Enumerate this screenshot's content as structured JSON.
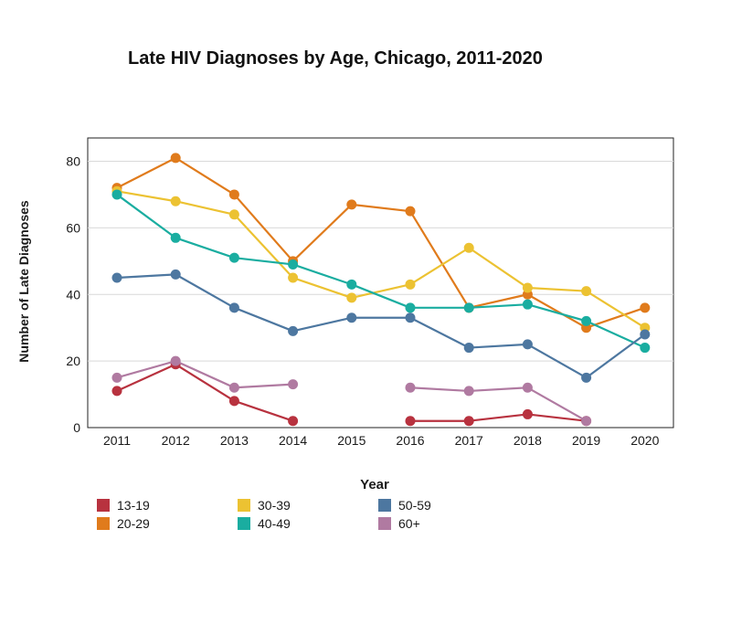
{
  "chart_data": {
    "type": "line",
    "title": "Late HIV Diagnoses by Age, Chicago, 2011-2020",
    "xlabel": "Year",
    "ylabel": "Number of Late Diagnoses",
    "x": [
      "2011",
      "2012",
      "2013",
      "2014",
      "2015",
      "2016",
      "2017",
      "2018",
      "2019",
      "2020"
    ],
    "yticks": [
      0,
      20,
      40,
      60,
      80
    ],
    "ylim": [
      0,
      87
    ],
    "grid": "horizontal",
    "legend_position": "bottom-left",
    "series": [
      {
        "name": "13-19",
        "color": "#b8323f",
        "values": [
          11,
          19,
          8,
          2,
          null,
          2,
          2,
          4,
          2,
          null
        ]
      },
      {
        "name": "20-29",
        "color": "#e07b1c",
        "values": [
          72,
          81,
          70,
          50,
          67,
          65,
          36,
          40,
          30,
          36
        ]
      },
      {
        "name": "30-39",
        "color": "#ecc232",
        "values": [
          71,
          68,
          64,
          45,
          39,
          43,
          54,
          42,
          41,
          30
        ]
      },
      {
        "name": "40-49",
        "color": "#1aada0",
        "values": [
          70,
          57,
          51,
          49,
          43,
          36,
          36,
          37,
          32,
          24
        ]
      },
      {
        "name": "50-59",
        "color": "#4d77a0",
        "values": [
          45,
          46,
          36,
          29,
          33,
          33,
          24,
          25,
          15,
          28
        ]
      },
      {
        "name": "60+",
        "color": "#b07aa1",
        "values": [
          15,
          20,
          12,
          13,
          null,
          12,
          11,
          12,
          2,
          null
        ]
      }
    ]
  }
}
